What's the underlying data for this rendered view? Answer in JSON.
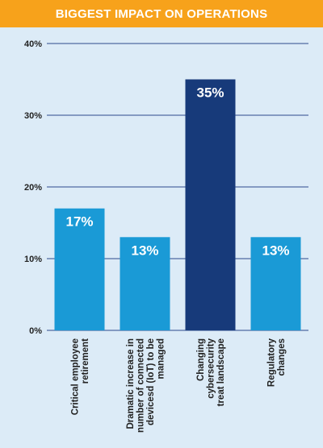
{
  "title": "BIGGEST IMPACT ON OPERATIONS",
  "colors": {
    "banner": "#f7a21b",
    "background": "#dcebf7",
    "bar": "#1a9ad6",
    "bar_highlight": "#173a7a",
    "gridline": "#2c4a8c",
    "axis_text": "#222222"
  },
  "chart_data": {
    "type": "bar",
    "title": "BIGGEST IMPACT ON OPERATIONS",
    "categories": [
      [
        "Critical employee",
        "retirement"
      ],
      [
        "Dramatic increase in",
        "number of connected",
        "devicesd (IoT) to be",
        "managed"
      ],
      [
        "Changing",
        "cybersecurity",
        "treat landscape"
      ],
      [
        "Regulatory",
        "changes"
      ]
    ],
    "values": [
      17,
      13,
      35,
      13
    ],
    "data_labels": [
      "17%",
      "13%",
      "35%",
      "13%"
    ],
    "highlight_index": 2,
    "ylim": [
      0,
      40
    ],
    "yticks": [
      0,
      10,
      20,
      30,
      40
    ],
    "ytick_labels": [
      "0%",
      "10%",
      "20%",
      "30%",
      "40%"
    ],
    "xlabel": "",
    "ylabel": "",
    "grid": true
  }
}
